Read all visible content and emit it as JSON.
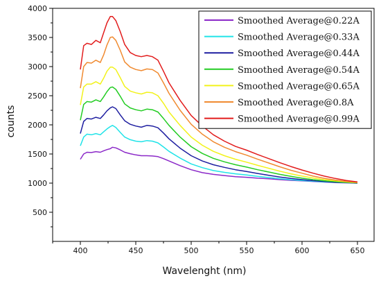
{
  "chart_data": {
    "type": "line",
    "title": "",
    "xlabel": "Wavelenght (nm)",
    "ylabel": "counts",
    "xlim": [
      375,
      665
    ],
    "ylim": [
      0,
      4000
    ],
    "xticks": [
      400,
      450,
      500,
      550,
      600,
      650
    ],
    "yticks": [
      500,
      1000,
      1500,
      2000,
      2500,
      3000,
      3500,
      4000
    ],
    "grid": false,
    "legend_position": "top-right",
    "x": [
      400,
      403,
      406,
      410,
      414,
      418,
      421,
      424,
      427,
      429,
      432,
      436,
      440,
      445,
      450,
      455,
      460,
      465,
      470,
      475,
      480,
      490,
      500,
      510,
      520,
      530,
      540,
      550,
      560,
      570,
      580,
      590,
      600,
      610,
      620,
      630,
      640,
      650
    ],
    "series": [
      {
        "name": "Smoothed Average@0.22A",
        "color": "#8b28c8",
        "values": [
          1410,
          1500,
          1530,
          1525,
          1540,
          1530,
          1555,
          1575,
          1590,
          1615,
          1605,
          1570,
          1530,
          1505,
          1485,
          1470,
          1470,
          1465,
          1455,
          1420,
          1380,
          1300,
          1230,
          1180,
          1150,
          1130,
          1110,
          1100,
          1085,
          1075,
          1060,
          1048,
          1038,
          1028,
          1018,
          1010,
          1005,
          1000
        ]
      },
      {
        "name": "Smoothed Average@0.33A",
        "color": "#1fe3e8",
        "values": [
          1640,
          1790,
          1840,
          1830,
          1850,
          1830,
          1880,
          1930,
          1970,
          1990,
          1955,
          1870,
          1790,
          1745,
          1720,
          1710,
          1730,
          1720,
          1690,
          1620,
          1545,
          1430,
          1330,
          1265,
          1215,
          1185,
          1160,
          1140,
          1115,
          1095,
          1075,
          1058,
          1045,
          1033,
          1022,
          1013,
          1007,
          1000
        ]
      },
      {
        "name": "Smoothed Average@0.44A",
        "color": "#1e1ea0",
        "values": [
          1850,
          2060,
          2110,
          2100,
          2130,
          2110,
          2170,
          2240,
          2290,
          2310,
          2280,
          2170,
          2070,
          2010,
          1980,
          1960,
          1990,
          1980,
          1950,
          1860,
          1760,
          1600,
          1470,
          1380,
          1315,
          1270,
          1230,
          1200,
          1165,
          1135,
          1105,
          1080,
          1060,
          1042,
          1028,
          1016,
          1008,
          1000
        ]
      },
      {
        "name": "Smoothed Average@0.54A",
        "color": "#22cc22",
        "values": [
          2080,
          2350,
          2400,
          2390,
          2430,
          2400,
          2480,
          2570,
          2640,
          2650,
          2610,
          2490,
          2360,
          2290,
          2260,
          2240,
          2270,
          2260,
          2220,
          2110,
          1990,
          1790,
          1625,
          1510,
          1425,
          1365,
          1315,
          1275,
          1230,
          1190,
          1150,
          1115,
          1085,
          1060,
          1040,
          1024,
          1012,
          1005
        ]
      },
      {
        "name": "Smoothed Average@0.65A",
        "color": "#f2f21a",
        "values": [
          2340,
          2650,
          2700,
          2700,
          2740,
          2700,
          2800,
          2920,
          2990,
          2990,
          2950,
          2810,
          2660,
          2580,
          2550,
          2530,
          2560,
          2550,
          2500,
          2370,
          2220,
          1990,
          1790,
          1650,
          1545,
          1470,
          1410,
          1360,
          1305,
          1255,
          1205,
          1160,
          1120,
          1088,
          1060,
          1038,
          1020,
          1008
        ]
      },
      {
        "name": "Smoothed Average@0.8A",
        "color": "#f08a30",
        "values": [
          2630,
          3000,
          3070,
          3060,
          3110,
          3070,
          3200,
          3370,
          3500,
          3510,
          3450,
          3280,
          3080,
          2990,
          2950,
          2930,
          2960,
          2950,
          2890,
          2720,
          2540,
          2250,
          2010,
          1840,
          1710,
          1615,
          1540,
          1480,
          1410,
          1345,
          1280,
          1220,
          1170,
          1120,
          1082,
          1052,
          1028,
          1012
        ]
      },
      {
        "name": "Smoothed Average@0.99A",
        "color": "#e21b1b",
        "values": [
          2950,
          3360,
          3400,
          3380,
          3450,
          3410,
          3580,
          3750,
          3860,
          3860,
          3790,
          3600,
          3380,
          3240,
          3190,
          3170,
          3190,
          3170,
          3110,
          2920,
          2720,
          2420,
          2160,
          1980,
          1830,
          1720,
          1630,
          1565,
          1490,
          1420,
          1350,
          1285,
          1225,
          1170,
          1120,
          1080,
          1045,
          1020
        ]
      }
    ]
  }
}
